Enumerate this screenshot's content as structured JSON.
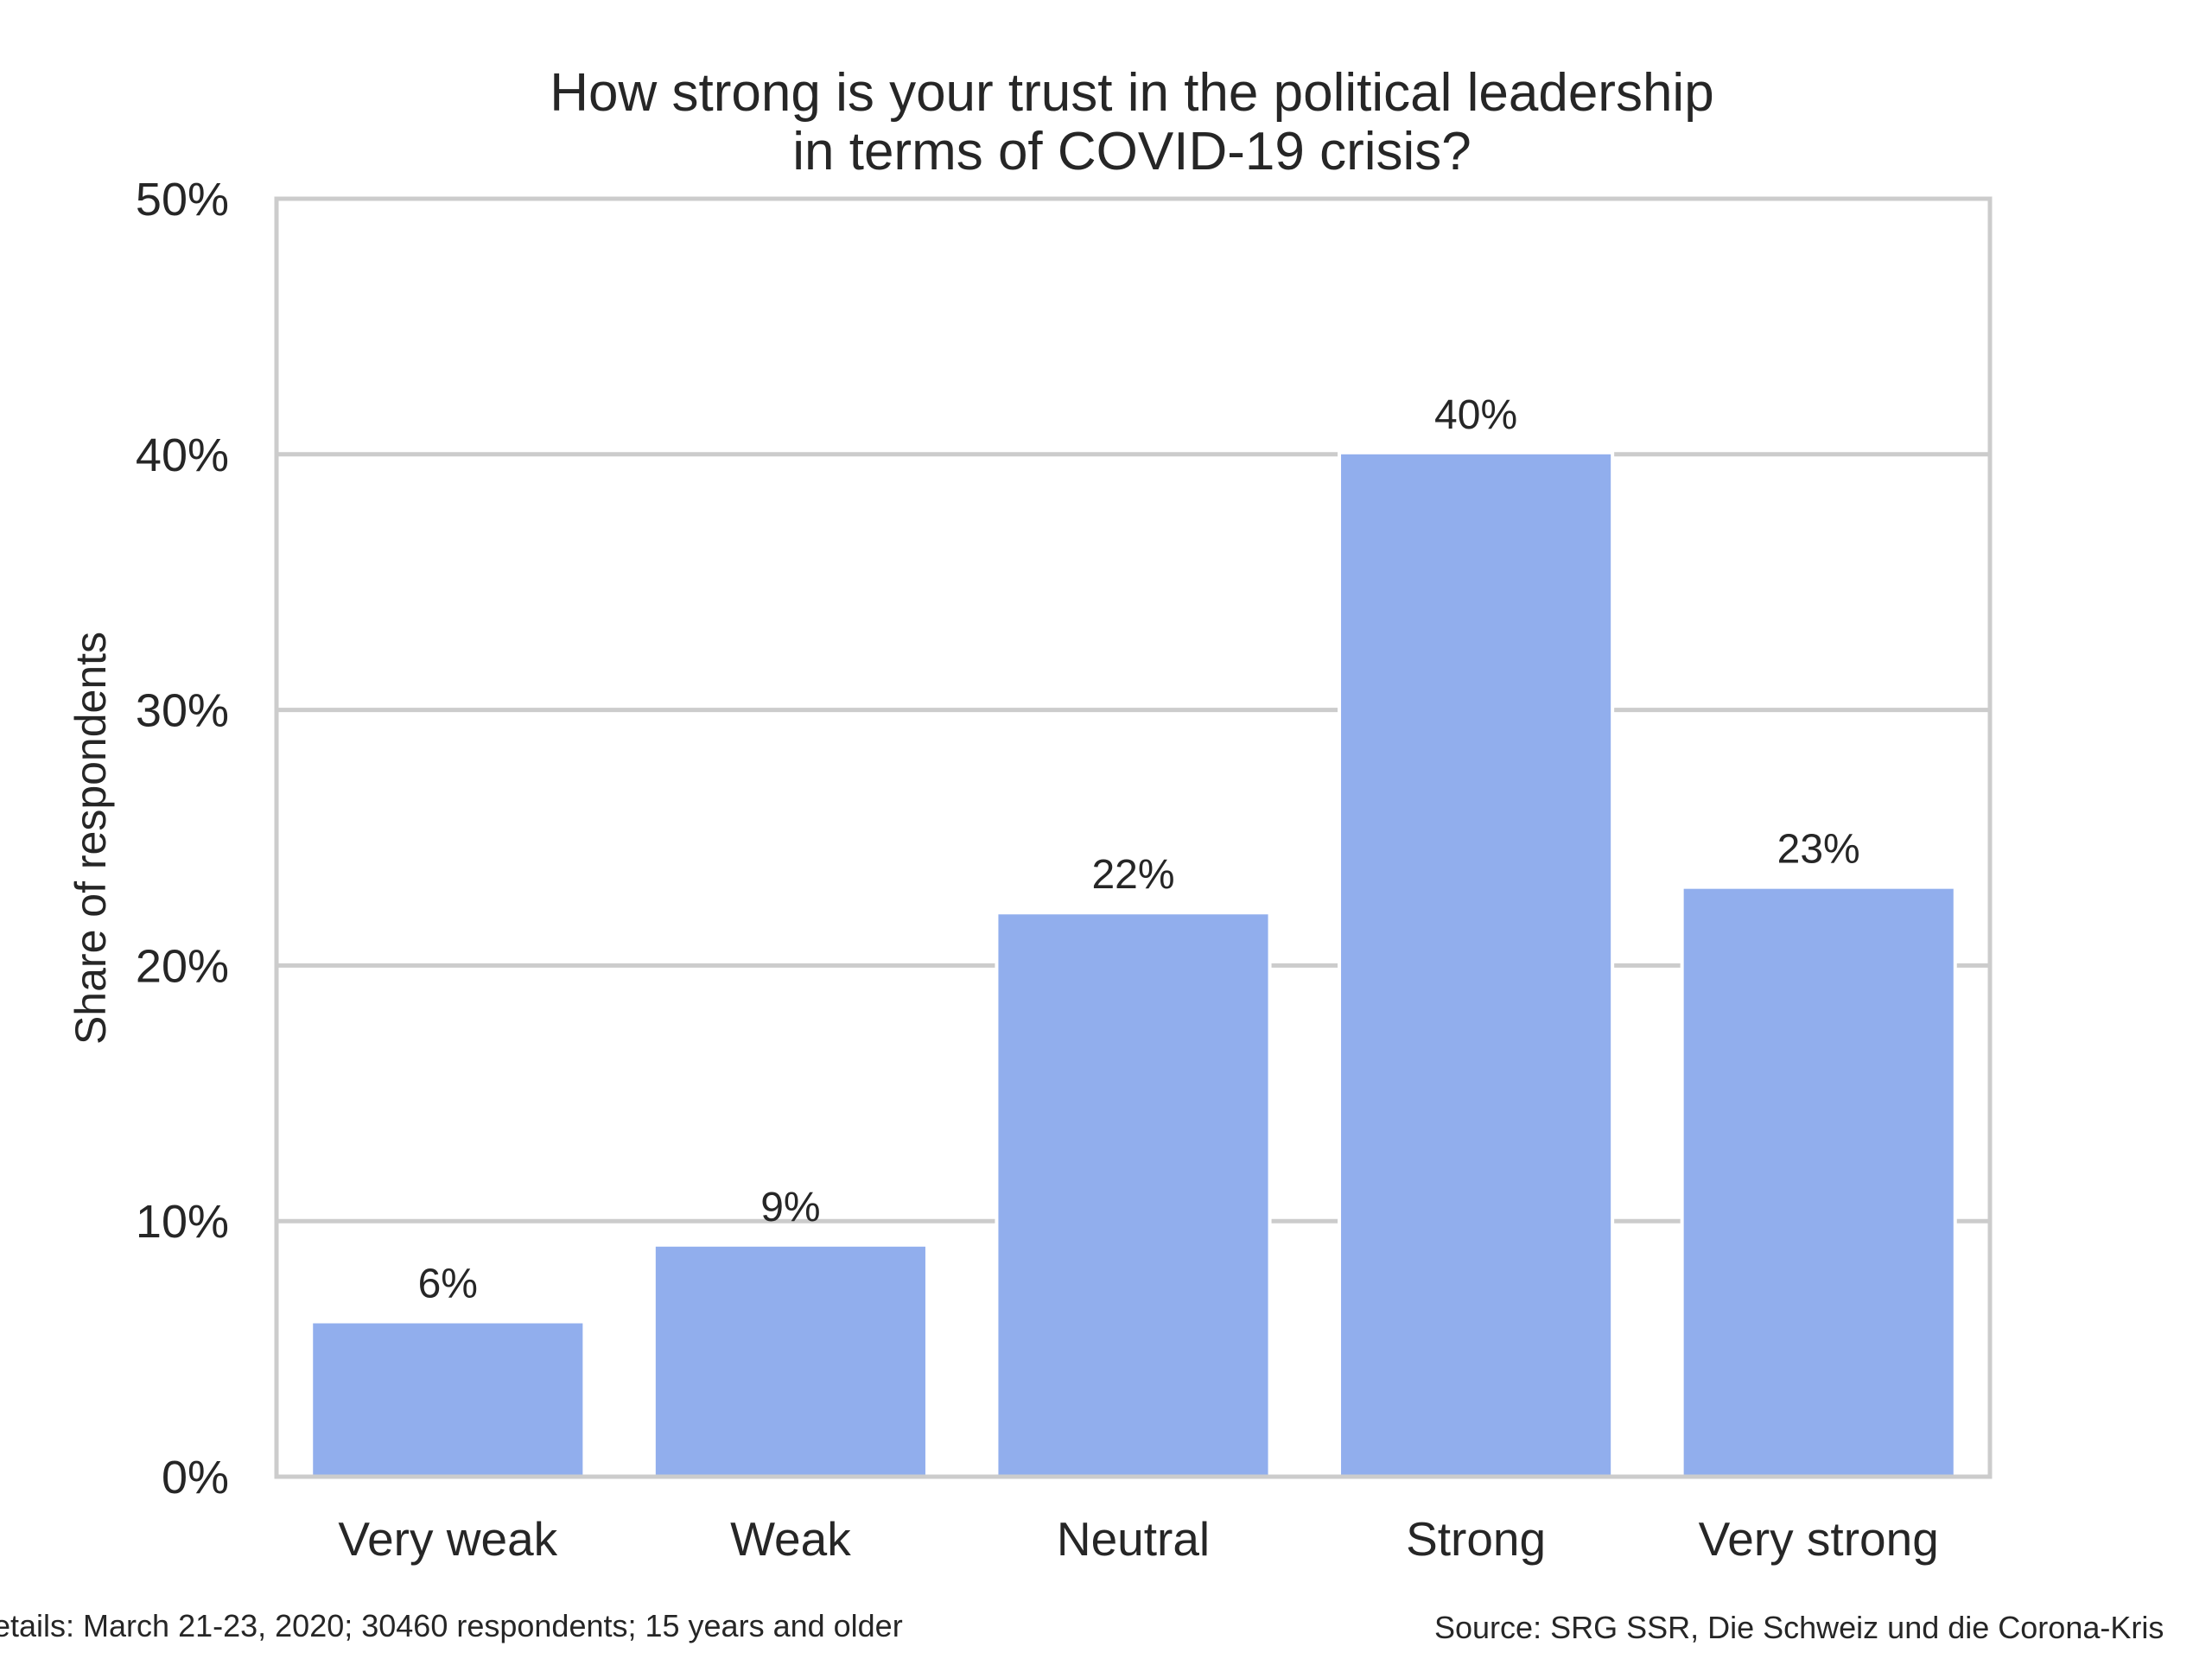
{
  "chart_data": {
    "type": "bar",
    "title_lines": [
      "How strong is your trust in the political leadership",
      "in terms of COVID-19 crisis?"
    ],
    "xlabel": "",
    "ylabel": "Share of respondents",
    "categories": [
      "Very weak",
      "Weak",
      "Neutral",
      "Strong",
      "Very strong"
    ],
    "values": [
      6,
      9,
      22,
      40,
      23
    ],
    "value_labels": [
      "6%",
      "9%",
      "22%",
      "40%",
      "23%"
    ],
    "ylim": [
      0,
      50
    ],
    "y_ticks": [
      0,
      10,
      20,
      30,
      40,
      50
    ],
    "y_tick_labels": [
      "0%",
      "10%",
      "20%",
      "30%",
      "40%",
      "50%"
    ],
    "grid": true,
    "bar_color": "#91aeed",
    "grid_color": "#cccccc",
    "footer_left": "etails: March 21-23, 2020; 30460 respondents; 15 years and older",
    "footer_right": "Source: SRG SSR, Die Schweiz und die Corona-Kris"
  }
}
